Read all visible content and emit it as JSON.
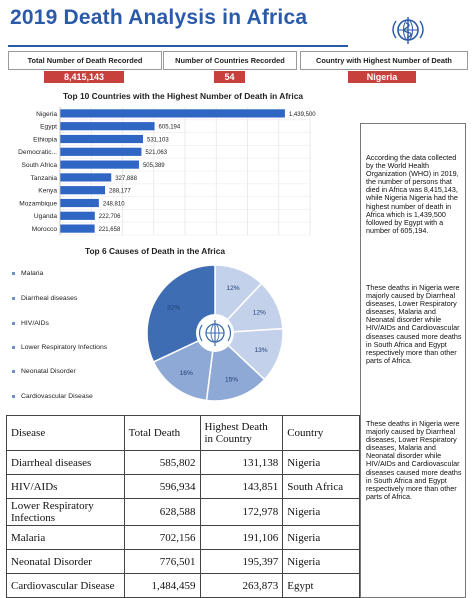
{
  "header": {
    "title": "2019 Death Analysis in Africa"
  },
  "stats": [
    {
      "label": "Total Number of  Death Recorded",
      "value": "8,415,143"
    },
    {
      "label": "Number of  Countries Recorded",
      "value": "54"
    },
    {
      "label": "Country with Highest Number of Death",
      "value": "Nigeria"
    }
  ],
  "colors": {
    "title": "#2a5aa8",
    "bar": "#2f66c4",
    "stat_value_bg": "#c8403c",
    "pie_dark": "#3e6db4",
    "pie_mid": "#8ea9d6",
    "pie_light": "#c3d1ea"
  },
  "icons": {
    "logo": "who-emblem-icon"
  },
  "chart_data": [
    {
      "type": "bar",
      "orientation": "horizontal",
      "title": "Top 10 Countries with the Highest Number of Death in Africa",
      "categories": [
        "Nigeria",
        "Egypt",
        "Ethiopia",
        "Democratic...",
        "South Africa",
        "Tanzania",
        "Kenya",
        "Mozambique",
        "Uganda",
        "Morocco"
      ],
      "values": [
        1439500,
        605194,
        531103,
        521063,
        505389,
        327888,
        288177,
        248810,
        222706,
        221658
      ],
      "value_labels": [
        "1,439,500",
        "605,194",
        "531,103",
        "521,063",
        "505,389",
        "327,888",
        "288,177",
        "248,810",
        "222,706",
        "221,658"
      ],
      "grid": true
    },
    {
      "type": "pie",
      "title": "Top 6 Causes of Death in the Africa",
      "legend": [
        "Malaria",
        "Diarrheal diseases",
        "HIV/AIDs",
        "Lower Respiratory Infections",
        "Neonatal Disorder",
        "Cardiovascular Disease"
      ],
      "legend_position": "left",
      "slices": [
        {
          "label": "12%",
          "value": 12
        },
        {
          "label": "12%",
          "value": 12
        },
        {
          "label": "13%",
          "value": 13
        },
        {
          "label": "15%",
          "value": 15
        },
        {
          "label": "16%",
          "value": 16
        },
        {
          "label": "32%",
          "value": 32
        }
      ],
      "slice_colors": [
        "light",
        "light",
        "light",
        "mid",
        "mid",
        "dark"
      ]
    }
  ],
  "notes": [
    "According the data collected by the World Health Organization (WHO) in 2019, the number of persons that died in Africa was 8,415,143, while Nigeria Nigeria had the highest number of death in Africa which is 1,439,500 followed by Egypt with a number of 605,194.",
    "These deaths in Nigeria were majorly caused by Diarrheal diseases, Lower Respiratory diseases, Malaria and Neonatal disorder while HIV/AIDs and Cardiovascular diseases caused more deaths in South Africa and Egypt respectively more than other parts of Africa.",
    "These deaths in Nigeria were majorly caused by Diarrheal diseases, Lower Respiratory diseases, Malaria and Neonatal disorder while HIV/AIDs and Cardiovascular diseases caused more deaths in South Africa and Egypt respectively more than other parts of Africa."
  ],
  "table": {
    "headers": [
      "Disease",
      "Total Death",
      "Highest Death in Country",
      "Country"
    ],
    "rows": [
      [
        "Diarrheal diseases",
        "585,802",
        "131,138",
        "Nigeria"
      ],
      [
        "HIV/AIDs",
        "596,934",
        "143,851",
        "South Africa"
      ],
      [
        "Lower Respiratory Infections",
        "628,588",
        "172,978",
        "Nigeria"
      ],
      [
        "Malaria",
        "702,156",
        "191,106",
        "Nigeria"
      ],
      [
        "Neonatal Disorder",
        "776,501",
        "195,397",
        "Nigeria"
      ],
      [
        "Cardiovascular Disease",
        "1,484,459",
        "263,873",
        "Egypt"
      ]
    ]
  }
}
